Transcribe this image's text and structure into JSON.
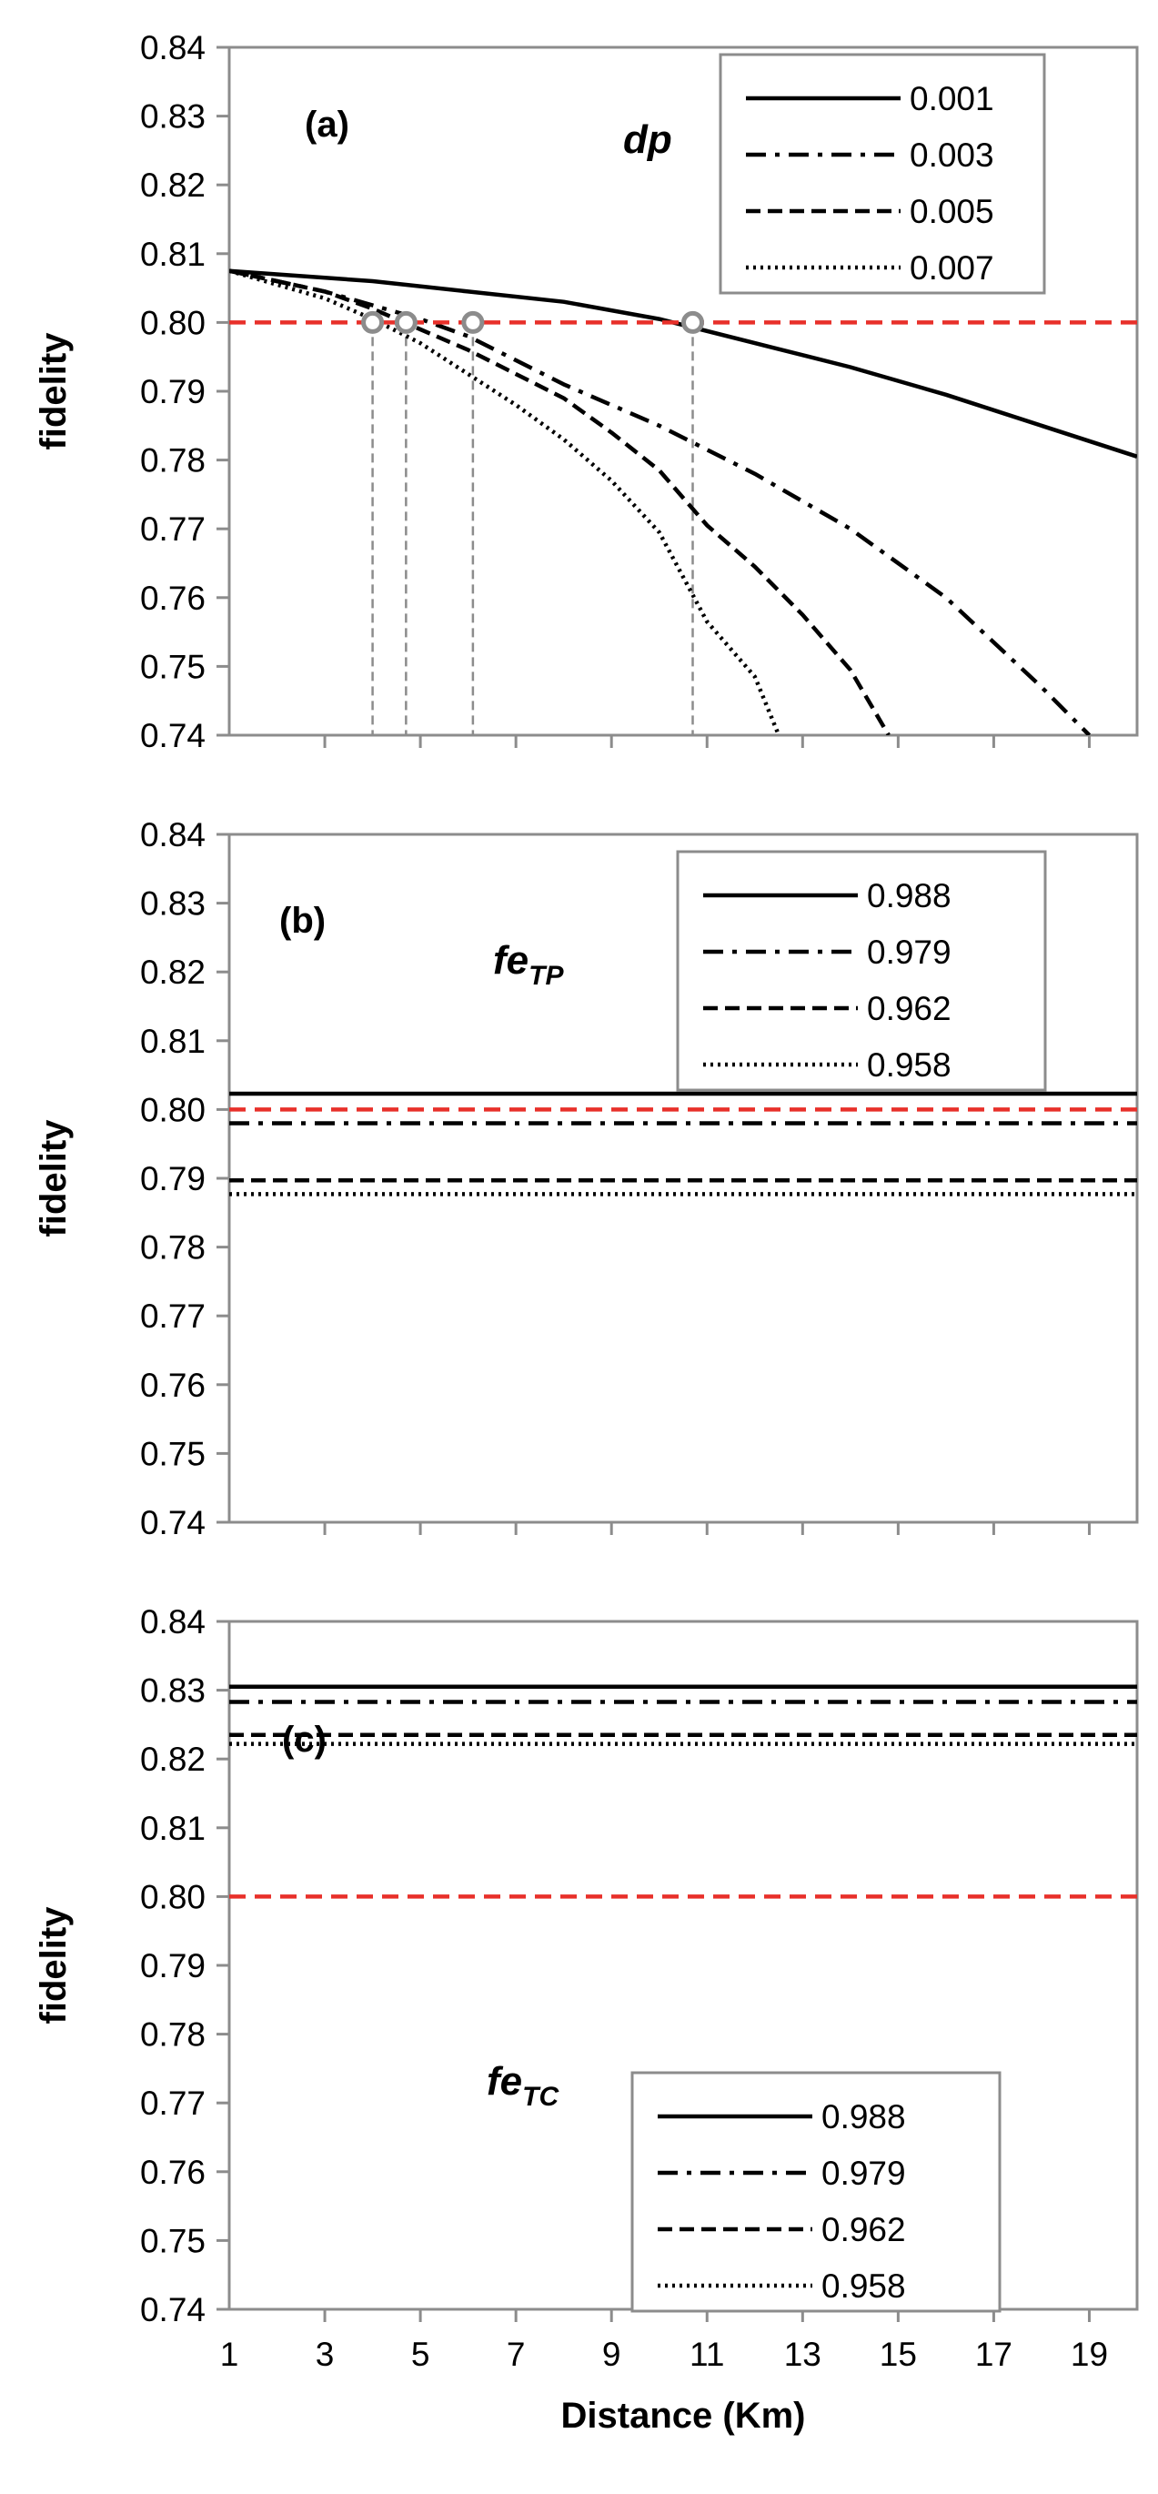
{
  "chart_data": [
    {
      "type": "line",
      "panel_label": "(a)",
      "parameter_label": "dp",
      "parameter_label_sub": "",
      "ylabel": "fidelity",
      "xlabel": "",
      "xlim": [
        1,
        20
      ],
      "ylim": [
        0.74,
        0.84
      ],
      "yticks": [
        "0.74",
        "0.75",
        "0.76",
        "0.77",
        "0.78",
        "0.79",
        "0.80",
        "0.81",
        "0.82",
        "0.83",
        "0.84"
      ],
      "xticks": [],
      "threshold": 0.8,
      "legend_position": "top-right",
      "series": [
        {
          "name": "0.001",
          "style": "solid",
          "x": [
            1,
            2,
            4,
            6,
            8,
            10,
            12,
            14,
            16,
            18,
            20
          ],
          "y": [
            0.8075,
            0.807,
            0.806,
            0.8045,
            0.803,
            0.8005,
            0.797,
            0.7935,
            0.7895,
            0.785,
            0.7805
          ]
        },
        {
          "name": "0.003",
          "style": "dashdot",
          "x": [
            1,
            2,
            3,
            4,
            5,
            6,
            8,
            10,
            12,
            14,
            16,
            18,
            19
          ],
          "y": [
            0.8075,
            0.806,
            0.8045,
            0.8025,
            0.8005,
            0.798,
            0.791,
            0.785,
            0.778,
            0.77,
            0.76,
            0.747,
            0.74
          ]
        },
        {
          "name": "0.005",
          "style": "dashed",
          "x": [
            1,
            2,
            3,
            4,
            5,
            6,
            7,
            8,
            9,
            10,
            11,
            12,
            13,
            14,
            14.8
          ],
          "y": [
            0.8075,
            0.806,
            0.8045,
            0.802,
            0.799,
            0.796,
            0.7925,
            0.789,
            0.784,
            0.7785,
            0.7705,
            0.7645,
            0.7575,
            0.7495,
            0.74
          ]
        },
        {
          "name": "0.007",
          "style": "dotted",
          "x": [
            1,
            2,
            3,
            4,
            5,
            6,
            7,
            8,
            9,
            10,
            11,
            12,
            12.5
          ],
          "y": [
            0.8075,
            0.8055,
            0.8035,
            0.8005,
            0.797,
            0.7925,
            0.788,
            0.783,
            0.777,
            0.7695,
            0.7565,
            0.7485,
            0.74
          ]
        }
      ],
      "crossings": [
        4.0,
        4.7,
        6.1,
        10.7
      ]
    },
    {
      "type": "line",
      "panel_label": "(b)",
      "parameter_label": "fe",
      "parameter_label_sub": "TP",
      "ylabel": "fidelity",
      "xlabel": "",
      "xlim": [
        1,
        20
      ],
      "ylim": [
        0.74,
        0.84
      ],
      "yticks": [
        "0.74",
        "0.75",
        "0.76",
        "0.77",
        "0.78",
        "0.79",
        "0.80",
        "0.81",
        "0.82",
        "0.83",
        "0.84"
      ],
      "xticks": [],
      "threshold": 0.8,
      "legend_position": "top-right",
      "series": [
        {
          "name": "0.988",
          "style": "solid",
          "x": [
            1,
            20
          ],
          "y": [
            0.8023,
            0.8023
          ]
        },
        {
          "name": "0.979",
          "style": "dashdot",
          "x": [
            1,
            20
          ],
          "y": [
            0.798,
            0.798
          ]
        },
        {
          "name": "0.962",
          "style": "dashed",
          "x": [
            1,
            20
          ],
          "y": [
            0.7897,
            0.7897
          ]
        },
        {
          "name": "0.958",
          "style": "dotted",
          "x": [
            1,
            20
          ],
          "y": [
            0.7877,
            0.7877
          ]
        }
      ],
      "crossings": []
    },
    {
      "type": "line",
      "panel_label": "(c)",
      "parameter_label": "fe",
      "parameter_label_sub": "TC",
      "ylabel": "fidelity",
      "xlabel": "Distance (Km)",
      "xlim": [
        1,
        20
      ],
      "ylim": [
        0.74,
        0.84
      ],
      "yticks": [
        "0.74",
        "0.75",
        "0.76",
        "0.77",
        "0.78",
        "0.79",
        "0.80",
        "0.81",
        "0.82",
        "0.83",
        "0.84"
      ],
      "xticks": [
        "1",
        "3",
        "5",
        "7",
        "9",
        "11",
        "13",
        "15",
        "17",
        "19"
      ],
      "threshold": 0.8,
      "legend_position": "bottom-center",
      "series": [
        {
          "name": "0.988",
          "style": "solid",
          "x": [
            1,
            20
          ],
          "y": [
            0.8305,
            0.8305
          ]
        },
        {
          "name": "0.979",
          "style": "dashdot",
          "x": [
            1,
            20
          ],
          "y": [
            0.8283,
            0.8283
          ]
        },
        {
          "name": "0.962",
          "style": "dashed",
          "x": [
            1,
            20
          ],
          "y": [
            0.8235,
            0.8235
          ]
        },
        {
          "name": "0.958",
          "style": "dotted",
          "x": [
            1,
            20
          ],
          "y": [
            0.8222,
            0.8222
          ]
        }
      ],
      "crossings": []
    }
  ]
}
